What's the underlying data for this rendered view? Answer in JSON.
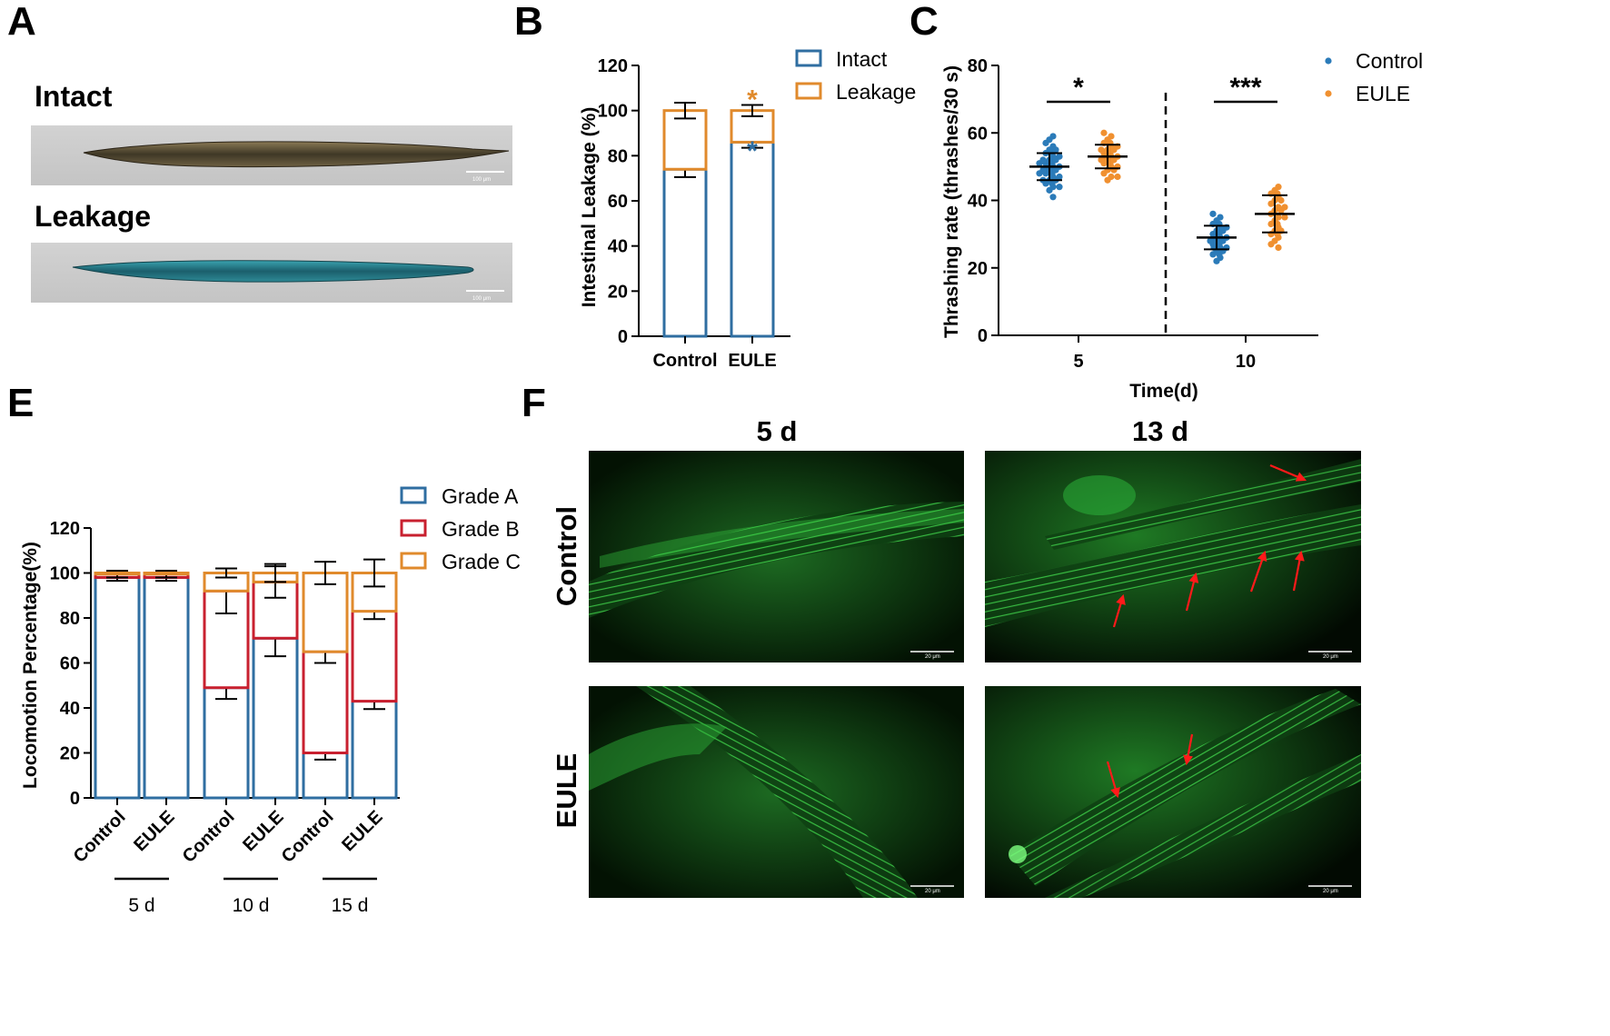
{
  "panels": {
    "A": {
      "label": "A",
      "rows": [
        {
          "label": "Intact",
          "scale_bar": "100 μm"
        },
        {
          "label": "Leakage",
          "scale_bar": "100 μm"
        }
      ]
    },
    "F": {
      "label": "F",
      "columns": [
        "5 d",
        "13 d"
      ],
      "rows": [
        "Control",
        "EULE"
      ],
      "scale_bar": "20 μm",
      "arrows": [
        {
          "image": "control-13d",
          "points": [
            [
              1398,
              512
            ],
            [
              1436,
              528
            ]
          ]
        },
        {
          "image": "control-13d",
          "points": [
            [
              1226,
              690
            ],
            [
              1236,
              656
            ]
          ]
        },
        {
          "image": "control-13d",
          "points": [
            [
              1306,
              672
            ],
            [
              1316,
              632
            ]
          ]
        },
        {
          "image": "control-13d",
          "points": [
            [
              1377,
              651
            ],
            [
              1392,
              608
            ]
          ]
        },
        {
          "image": "control-13d",
          "points": [
            [
              1424,
              650
            ],
            [
              1432,
              608
            ]
          ]
        },
        {
          "image": "eule-13d",
          "points": [
            [
              1219,
              838
            ],
            [
              1230,
              876
            ]
          ]
        },
        {
          "image": "eule-13d",
          "points": [
            [
              1312,
              808
            ],
            [
              1306,
              840
            ]
          ]
        }
      ]
    }
  },
  "colors": {
    "blue": "#2f6ea1",
    "orange": "#e08a2c",
    "red": "#c8202f",
    "scatter_blue": "#2b7bb9",
    "scatter_orange": "#f09030",
    "arrow": "#ff1a1a"
  },
  "chart_data": [
    {
      "panel": "B",
      "type": "bar",
      "stacked": true,
      "categories": [
        "Control",
        "EULE"
      ],
      "series": [
        {
          "name": "Intact",
          "values": [
            74,
            86
          ],
          "errors": [
            3.5,
            2.5
          ],
          "color": "#2f6ea1"
        },
        {
          "name": "Leakage",
          "values": [
            26,
            14
          ],
          "errors": [
            3.5,
            2.5
          ],
          "color": "#e08a2c"
        }
      ],
      "ylabel": "Intestinal Leakage (%)",
      "ylim": [
        0,
        120
      ],
      "yticks": [
        0,
        20,
        40,
        60,
        80,
        100,
        120
      ],
      "annotations": [
        {
          "category": "EULE",
          "series": "Intact",
          "text": "*"
        },
        {
          "category": "EULE",
          "series": "Leakage",
          "text": "*"
        }
      ],
      "legend": "top-right"
    },
    {
      "panel": "C",
      "type": "scatter",
      "categories": [
        "5",
        "10"
      ],
      "series": [
        {
          "name": "Control",
          "color": "#2b7bb9",
          "groups": [
            {
              "category": "5",
              "mean": 50,
              "sd": 4,
              "points": [
                41,
                43,
                44,
                44,
                45,
                45,
                46,
                46,
                46,
                47,
                47,
                48,
                48,
                48,
                49,
                49,
                49,
                50,
                50,
                50,
                51,
                51,
                51,
                52,
                52,
                52,
                53,
                53,
                54,
                54,
                55,
                55,
                56,
                57,
                58,
                59
              ]
            },
            {
              "category": "10",
              "mean": 29,
              "sd": 3.5,
              "points": [
                22,
                23,
                24,
                24,
                25,
                25,
                26,
                26,
                26,
                27,
                27,
                28,
                28,
                28,
                29,
                29,
                29,
                30,
                30,
                31,
                31,
                32,
                32,
                33,
                33,
                34,
                35,
                36
              ]
            }
          ]
        },
        {
          "name": "EULE",
          "color": "#f09030",
          "groups": [
            {
              "category": "5",
              "mean": 53,
              "sd": 3.5,
              "points": [
                46,
                47,
                47,
                48,
                49,
                49,
                50,
                50,
                51,
                51,
                52,
                52,
                52,
                53,
                53,
                53,
                54,
                54,
                55,
                55,
                55,
                56,
                56,
                57,
                57,
                58,
                59,
                60
              ]
            },
            {
              "category": "10",
              "mean": 36,
              "sd": 5.5,
              "points": [
                26,
                27,
                28,
                29,
                30,
                30,
                31,
                31,
                32,
                33,
                33,
                34,
                35,
                35,
                36,
                37,
                37,
                38,
                38,
                39,
                40,
                40,
                41,
                42,
                42,
                43,
                44
              ]
            }
          ]
        }
      ],
      "significance": [
        {
          "category": "5",
          "text": "*"
        },
        {
          "category": "10",
          "text": "***"
        }
      ],
      "xlabel": "Time(d)",
      "ylabel": "Thrashing rate (thrashes/30 s)",
      "ylim": [
        0,
        80
      ],
      "yticks": [
        0,
        20,
        40,
        60,
        80
      ],
      "legend": "top-right"
    },
    {
      "panel": "E",
      "type": "bar",
      "stacked": true,
      "categories": [
        "Control",
        "EULE",
        "Control",
        "EULE",
        "Control",
        "EULE"
      ],
      "groups": [
        {
          "label": "5 d",
          "categories": [
            0,
            1
          ]
        },
        {
          "label": "10 d",
          "categories": [
            2,
            3
          ]
        },
        {
          "label": "15 d",
          "categories": [
            4,
            5
          ]
        }
      ],
      "series": [
        {
          "name": "Grade A",
          "color": "#2f6ea1",
          "values": [
            98,
            98,
            49,
            71,
            20,
            43
          ],
          "errors": [
            1.5,
            1.5,
            5,
            8,
            3,
            3.5
          ]
        },
        {
          "name": "Grade B",
          "color": "#c8202f",
          "values": [
            1.5,
            1.5,
            43,
            25,
            45,
            40
          ],
          "errors": [
            1.5,
            1.5,
            10,
            7,
            5,
            3.5
          ]
        },
        {
          "name": "Grade C",
          "color": "#e08a2c",
          "values": [
            0.5,
            0.5,
            8,
            4,
            35,
            17
          ],
          "errors": [
            0,
            0,
            2,
            4,
            5,
            6
          ]
        }
      ],
      "ylabel": "Locomotion Percentage(%)",
      "ylim": [
        0,
        120
      ],
      "yticks": [
        0,
        20,
        40,
        60,
        80,
        100,
        120
      ],
      "legend": "top-right"
    }
  ]
}
